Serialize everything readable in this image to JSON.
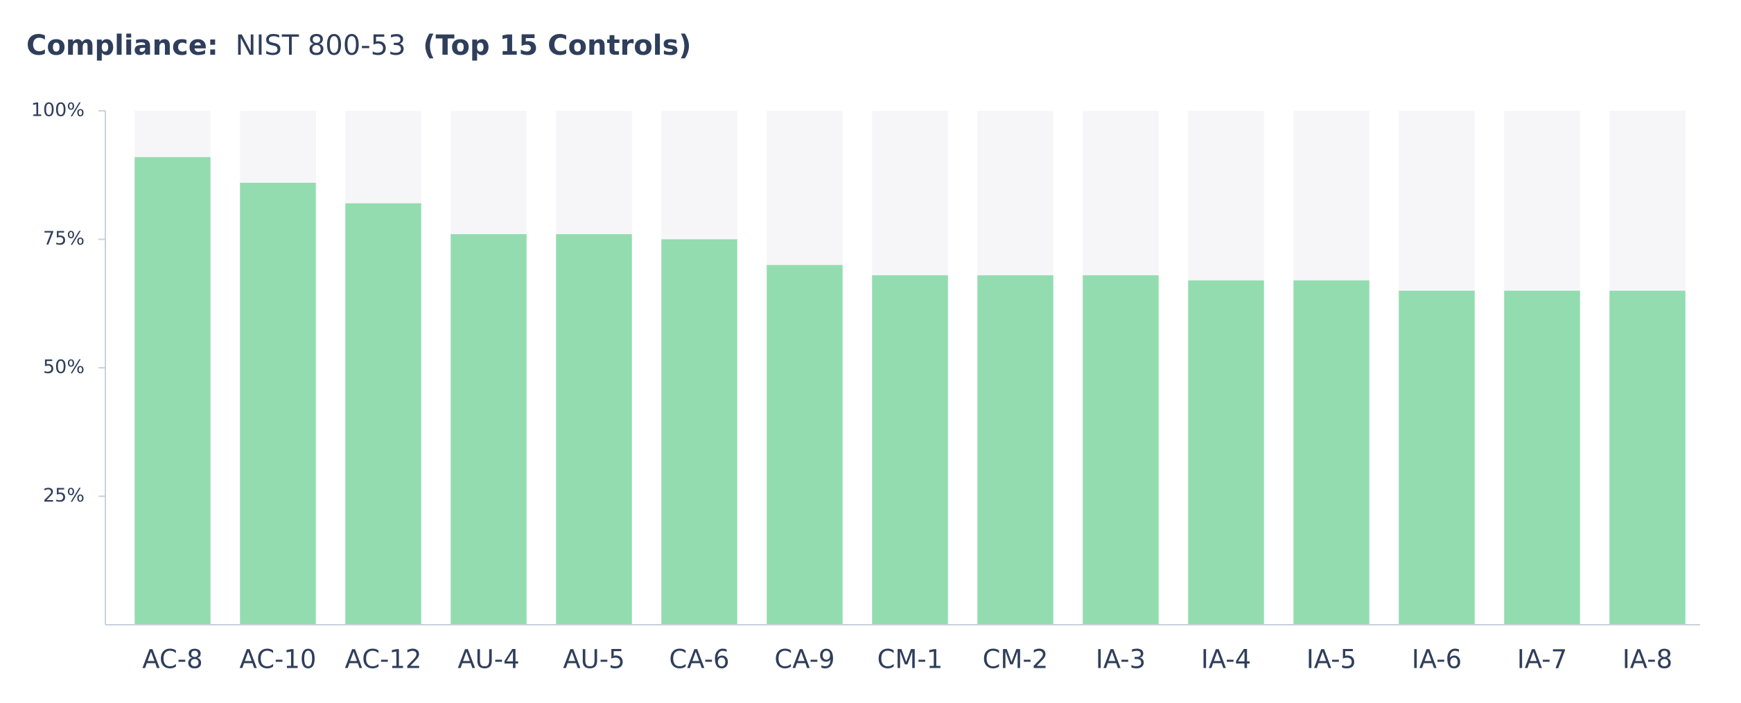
{
  "chart_data": {
    "type": "bar",
    "title": [
      "Compliance:",
      "NIST 800-53",
      "(Top 15 Controls)"
    ],
    "categories": [
      "AC-8",
      "AC-10",
      "AC-12",
      "AU-4",
      "AU-5",
      "CA-6",
      "CA-9",
      "CM-1",
      "CM-2",
      "IA-3",
      "IA-4",
      "IA-5",
      "IA-6",
      "IA-7",
      "IA-8"
    ],
    "values": [
      91,
      86,
      82,
      76,
      76,
      75,
      70,
      68,
      68,
      68,
      67,
      67,
      65,
      65,
      65
    ],
    "color": "#93dcb0",
    "track_color": "#f6f6f9",
    "ylim": [
      0,
      100
    ],
    "yticks": [
      {
        "value": 25,
        "label": "25%"
      },
      {
        "value": 50,
        "label": "50%"
      },
      {
        "value": 75,
        "label": "75%"
      },
      {
        "value": 100,
        "label": "100%"
      }
    ],
    "grid": false
  }
}
